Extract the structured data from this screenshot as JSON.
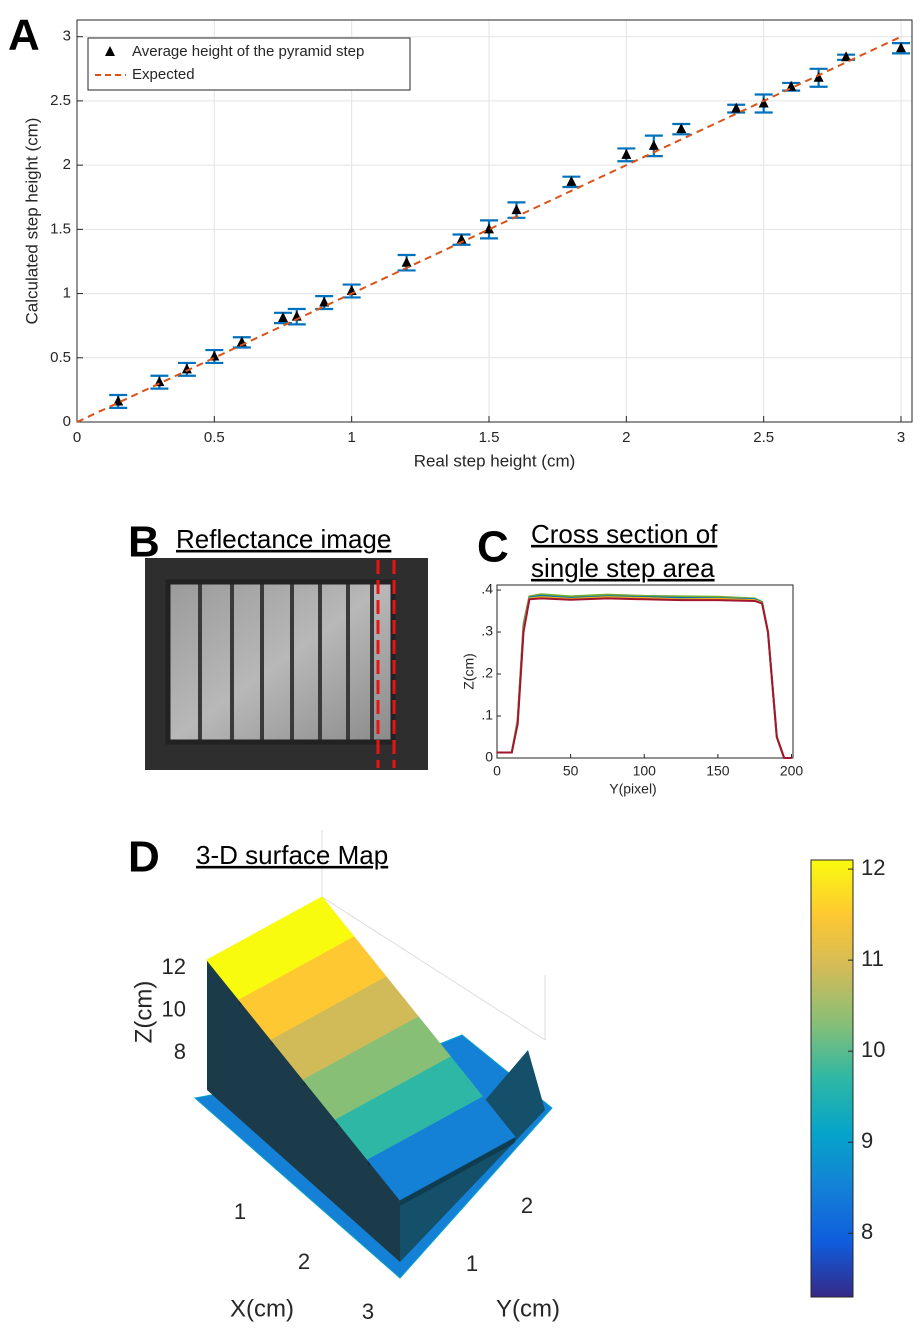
{
  "chart_data": [
    {
      "type": "scatter",
      "panel_label": "A",
      "xlabel": "Real step height (cm)",
      "ylabel": "Calculated step height (cm)",
      "xlim": [
        0,
        3.04
      ],
      "ylim": [
        0,
        3.13
      ],
      "xticks": [
        0,
        0.5,
        1,
        1.5,
        2,
        2.5,
        3
      ],
      "yticks": [
        0,
        0.5,
        1,
        1.5,
        2,
        2.5,
        3
      ],
      "grid": true,
      "legend": "upper left",
      "series": [
        {
          "name": "Average height of the pyramid step",
          "color": "#000000",
          "errorcolor": "#0072bd",
          "x": [
            0.15,
            0.3,
            0.4,
            0.5,
            0.6,
            0.75,
            0.8,
            0.9,
            1.0,
            1.2,
            1.4,
            1.5,
            1.6,
            1.8,
            2.0,
            2.1,
            2.2,
            2.4,
            2.5,
            2.6,
            2.7,
            2.8,
            3.0
          ],
          "values": [
            0.16,
            0.31,
            0.41,
            0.51,
            0.62,
            0.81,
            0.82,
            0.93,
            1.02,
            1.24,
            1.42,
            1.5,
            1.65,
            1.87,
            2.08,
            2.15,
            2.28,
            2.44,
            2.48,
            2.61,
            2.68,
            2.84,
            2.91
          ],
          "errors": [
            0.05,
            0.05,
            0.05,
            0.05,
            0.04,
            0.04,
            0.06,
            0.05,
            0.05,
            0.06,
            0.04,
            0.07,
            0.06,
            0.04,
            0.05,
            0.08,
            0.04,
            0.03,
            0.07,
            0.03,
            0.07,
            0.02,
            0.04
          ]
        },
        {
          "name": "Expected",
          "color": "#d95319",
          "style": "dashed",
          "x": [
            0,
            3
          ],
          "values": [
            0,
            3
          ]
        }
      ]
    },
    {
      "type": "line",
      "panel_label": "C",
      "title": [
        "Cross section of",
        "single step area"
      ],
      "xlabel": "Y(pixel)",
      "ylabel": "Z(cm)",
      "xlim": [
        0,
        201
      ],
      "ylim": [
        0,
        0.412
      ],
      "xticks": [
        0,
        50,
        100,
        150,
        200
      ],
      "yticks": [
        0,
        {
          "value": 0.1,
          "label": ".1"
        },
        {
          "value": 0.2,
          "label": ".2"
        },
        {
          "value": 0.3,
          "label": ".3"
        },
        {
          "value": 0.4,
          "label": ".4"
        }
      ],
      "x": [
        0,
        10,
        14,
        18,
        22,
        30,
        50,
        75,
        100,
        125,
        150,
        175,
        180,
        184,
        190,
        195,
        200
      ],
      "series": [
        {
          "color": "#77ac30",
          "values": [
            0.013,
            0.013,
            0.09,
            0.32,
            0.385,
            0.39,
            0.385,
            0.389,
            0.386,
            0.385,
            0.384,
            0.38,
            0.372,
            0.3,
            0.05,
            0,
            0
          ]
        },
        {
          "color": "#0072bd",
          "values": [
            0.013,
            0.013,
            0.085,
            0.31,
            0.382,
            0.386,
            0.381,
            0.385,
            0.383,
            0.381,
            0.38,
            0.378,
            0.37,
            0.3,
            0.05,
            0,
            0
          ]
        },
        {
          "color": "#edb120",
          "values": [
            0.013,
            0.013,
            0.082,
            0.305,
            0.38,
            0.383,
            0.379,
            0.383,
            0.381,
            0.378,
            0.379,
            0.376,
            0.369,
            0.3,
            0.05,
            0,
            0
          ]
        },
        {
          "color": "#a2142f",
          "values": [
            0.013,
            0.013,
            0.08,
            0.3,
            0.378,
            0.38,
            0.377,
            0.38,
            0.378,
            0.376,
            0.376,
            0.374,
            0.368,
            0.3,
            0.05,
            0,
            0
          ]
        }
      ]
    },
    {
      "type": "surface",
      "panel_label": "D",
      "title": "3-D surface Map",
      "xlabel": "X(cm)",
      "ylabel": "Y(cm)",
      "zlabel": "Z(cm)",
      "xticks": [
        1,
        2,
        3
      ],
      "yticks": [
        1,
        2
      ],
      "zticks": [
        8,
        10,
        12
      ],
      "clim": [
        7.3,
        12.1
      ],
      "cticks": [
        8,
        9,
        10,
        11,
        12
      ],
      "colormap": [
        "#352a87",
        "#0f5cdd",
        "#1481d6",
        "#06a4ca",
        "#2eb7a4",
        "#87bf77",
        "#d1bb59",
        "#fec832",
        "#f9fb0e"
      ]
    }
  ],
  "image_panel": {
    "panel_label": "B",
    "title": "Reflectance image"
  }
}
